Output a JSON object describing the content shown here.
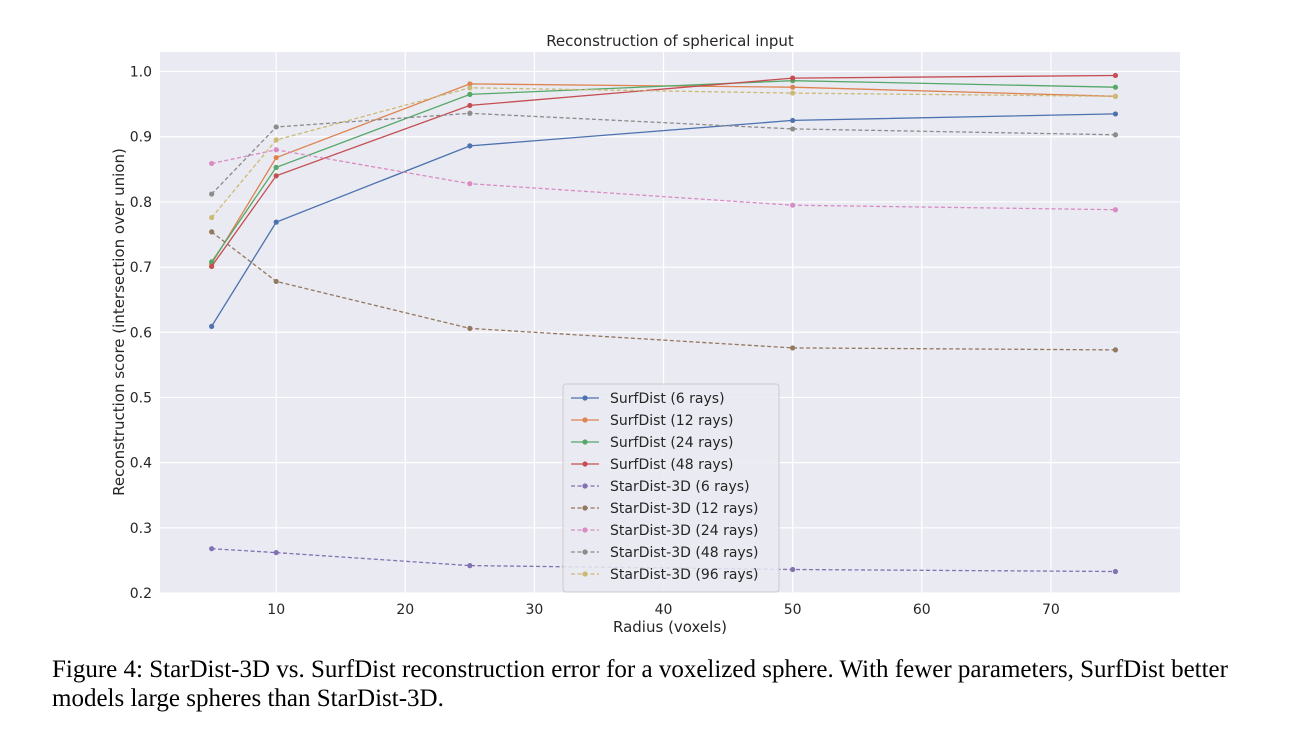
{
  "caption": "Figure 4: StarDist-3D vs. SurfDist reconstruction error for a voxelized sphere. With fewer parameters, SurfDist better models large spheres than StarDist-3D.",
  "chart_data": {
    "type": "line",
    "title": "Reconstruction of spherical input",
    "xlabel": "Radius (voxels)",
    "ylabel": "Reconstruction score (intersection over union)",
    "xlim": [
      1,
      80
    ],
    "ylim": [
      0.2,
      1.03
    ],
    "xticks": [
      10,
      20,
      30,
      40,
      50,
      60,
      70
    ],
    "yticks": [
      0.2,
      0.3,
      0.4,
      0.5,
      0.6,
      0.7,
      0.8,
      0.9,
      1.0
    ],
    "grid": true,
    "legend_position": "lower center",
    "x": [
      5,
      10,
      25,
      50,
      75
    ],
    "series": [
      {
        "name": "SurfDist (6 rays)",
        "values": [
          0.609,
          0.769,
          0.886,
          0.925,
          0.935
        ],
        "color": "#4c72b0",
        "dashed": false
      },
      {
        "name": "SurfDist (12 rays)",
        "values": [
          0.705,
          0.868,
          0.981,
          0.976,
          0.962
        ],
        "color": "#dd8452",
        "dashed": false
      },
      {
        "name": "SurfDist (24 rays)",
        "values": [
          0.708,
          0.853,
          0.965,
          0.986,
          0.976
        ],
        "color": "#55a868",
        "dashed": false
      },
      {
        "name": "SurfDist (48 rays)",
        "values": [
          0.701,
          0.84,
          0.948,
          0.99,
          0.994
        ],
        "color": "#c44e52",
        "dashed": false
      },
      {
        "name": "StarDist-3D (6 rays)",
        "values": [
          0.268,
          0.262,
          0.242,
          0.236,
          0.233
        ],
        "color": "#8172b3",
        "dashed": true
      },
      {
        "name": "StarDist-3D (12 rays)",
        "values": [
          0.754,
          0.678,
          0.606,
          0.576,
          0.573
        ],
        "color": "#937860",
        "dashed": true
      },
      {
        "name": "StarDist-3D (24 rays)",
        "values": [
          0.859,
          0.88,
          0.828,
          0.795,
          0.788
        ],
        "color": "#da8bc3",
        "dashed": true
      },
      {
        "name": "StarDist-3D (48 rays)",
        "values": [
          0.812,
          0.915,
          0.936,
          0.912,
          0.903
        ],
        "color": "#8c8c8c",
        "dashed": true
      },
      {
        "name": "StarDist-3D (96 rays)",
        "values": [
          0.776,
          0.895,
          0.975,
          0.967,
          0.962
        ],
        "color": "#ccb974",
        "dashed": true
      }
    ]
  }
}
